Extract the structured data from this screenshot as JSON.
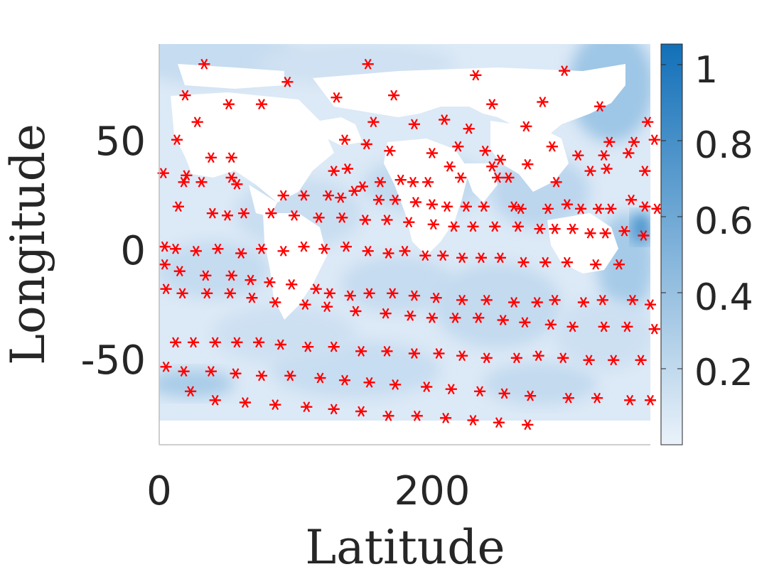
{
  "chart_data": {
    "type": "scatter",
    "xlabel": "Latitude",
    "ylabel": "Longitude",
    "xlim": [
      0,
      360
    ],
    "ylim": [
      -90,
      90
    ],
    "xticks": [
      "0",
      "200"
    ],
    "yticks": [
      "50",
      "0",
      "-50"
    ],
    "background": "heatmap",
    "colorbar": {
      "range": [
        0,
        1
      ],
      "ticks": [
        "1",
        "0.8",
        "0.6",
        "0.4",
        "0.2"
      ],
      "colormap": [
        "#eaf2fa",
        "#1270b8"
      ]
    },
    "marker": {
      "symbol": "asterisk",
      "color": "#ff0000"
    },
    "series": [
      {
        "points": [
          [
            33,
            81
          ],
          [
            153,
            81
          ],
          [
            232,
            76
          ],
          [
            297,
            78
          ],
          [
            94,
            73
          ],
          [
            19,
            67
          ],
          [
            130,
            66
          ],
          [
            172,
            67
          ],
          [
            244,
            63
          ],
          [
            281,
            64
          ],
          [
            323,
            62
          ],
          [
            51,
            63
          ],
          [
            75,
            63
          ],
          [
            28,
            55
          ],
          [
            157,
            55
          ],
          [
            187,
            54
          ],
          [
            209,
            56
          ],
          [
            227,
            52
          ],
          [
            269,
            53
          ],
          [
            358,
            55
          ],
          [
            13,
            47
          ],
          [
            136,
            47
          ],
          [
            152,
            45
          ],
          [
            219,
            44
          ],
          [
            288,
            44
          ],
          [
            330,
            46
          ],
          [
            348,
            46
          ],
          [
            363,
            47
          ],
          [
            38,
            39
          ],
          [
            53,
            39
          ],
          [
            169,
            42
          ],
          [
            200,
            41
          ],
          [
            239,
            42
          ],
          [
            307,
            40
          ],
          [
            326,
            40
          ],
          [
            344,
            41
          ],
          [
            3,
            32
          ],
          [
            20,
            31
          ],
          [
            53,
            30
          ],
          [
            128,
            33
          ],
          [
            138,
            34
          ],
          [
            213,
            35
          ],
          [
            244,
            35
          ],
          [
            250,
            38
          ],
          [
            270,
            36
          ],
          [
            316,
            33
          ],
          [
            328,
            34
          ],
          [
            356,
            33
          ],
          [
            370,
            33
          ],
          [
            18,
            28
          ],
          [
            31,
            28
          ],
          [
            162,
            28
          ],
          [
            177,
            29
          ],
          [
            186,
            28
          ],
          [
            197,
            28
          ],
          [
            221,
            30
          ],
          [
            248,
            30
          ],
          [
            256,
            30
          ],
          [
            291,
            28
          ],
          [
            149,
            26
          ],
          [
            143,
            24
          ],
          [
            57,
            27
          ],
          [
            91,
            22
          ],
          [
            106,
            22
          ],
          [
            124,
            22
          ],
          [
            133,
            21
          ],
          [
            161,
            20
          ],
          [
            173,
            20
          ],
          [
            188,
            19
          ],
          [
            200,
            18
          ],
          [
            211,
            17
          ],
          [
            225,
            17
          ],
          [
            238,
            17
          ],
          [
            260,
            17
          ],
          [
            265,
            16
          ],
          [
            285,
            16
          ],
          [
            299,
            18
          ],
          [
            309,
            16
          ],
          [
            322,
            16
          ],
          [
            331,
            16
          ],
          [
            346,
            20
          ],
          [
            356,
            17
          ],
          [
            365,
            16
          ],
          [
            14,
            17
          ],
          [
            39,
            14
          ],
          [
            50,
            13
          ],
          [
            62,
            14
          ],
          [
            82,
            14
          ],
          [
            99,
            13
          ],
          [
            117,
            12
          ],
          [
            134,
            12
          ],
          [
            151,
            11
          ],
          [
            167,
            11
          ],
          [
            183,
            10
          ],
          [
            201,
            9
          ],
          [
            216,
            8
          ],
          [
            230,
            8
          ],
          [
            246,
            8
          ],
          [
            263,
            8
          ],
          [
            279,
            7
          ],
          [
            290,
            7
          ],
          [
            303,
            7
          ],
          [
            316,
            5
          ],
          [
            327,
            5
          ],
          [
            341,
            6
          ],
          [
            355,
            4
          ],
          [
            369,
            4
          ],
          [
            4,
            -1
          ],
          [
            12,
            -2
          ],
          [
            27,
            -3
          ],
          [
            43,
            -2
          ],
          [
            60,
            -4
          ],
          [
            75,
            -2
          ],
          [
            91,
            -3
          ],
          [
            106,
            -1
          ],
          [
            121,
            -2
          ],
          [
            137,
            -1
          ],
          [
            153,
            -3
          ],
          [
            168,
            -4
          ],
          [
            180,
            -3
          ],
          [
            195,
            -5
          ],
          [
            208,
            -5
          ],
          [
            222,
            -6
          ],
          [
            236,
            -6
          ],
          [
            250,
            -6
          ],
          [
            267,
            -8
          ],
          [
            283,
            -8
          ],
          [
            299,
            -8
          ],
          [
            320,
            -9
          ],
          [
            337,
            -9
          ],
          [
            4,
            -9
          ],
          [
            15,
            -12
          ],
          [
            34,
            -14
          ],
          [
            53,
            -14
          ],
          [
            67,
            -16
          ],
          [
            81,
            -17
          ],
          [
            97,
            -18
          ],
          [
            115,
            -20
          ],
          [
            125,
            -22
          ],
          [
            140,
            -23
          ],
          [
            154,
            -22
          ],
          [
            171,
            -22
          ],
          [
            187,
            -23
          ],
          [
            203,
            -24
          ],
          [
            222,
            -25
          ],
          [
            240,
            -25
          ],
          [
            260,
            -26
          ],
          [
            277,
            -26
          ],
          [
            290,
            -25
          ],
          [
            311,
            -26
          ],
          [
            325,
            -25
          ],
          [
            347,
            -25
          ],
          [
            360,
            -27
          ],
          [
            5,
            -20
          ],
          [
            17,
            -22
          ],
          [
            35,
            -22
          ],
          [
            52,
            -22
          ],
          [
            68,
            -24
          ],
          [
            85,
            -26
          ],
          [
            107,
            -27
          ],
          [
            123,
            -28
          ],
          [
            144,
            -30
          ],
          [
            166,
            -31
          ],
          [
            184,
            -32
          ],
          [
            200,
            -33
          ],
          [
            217,
            -33
          ],
          [
            234,
            -33
          ],
          [
            252,
            -34
          ],
          [
            268,
            -35
          ],
          [
            287,
            -36
          ],
          [
            303,
            -37
          ],
          [
            326,
            -37
          ],
          [
            343,
            -37
          ],
          [
            363,
            -38
          ],
          [
            12,
            -44
          ],
          [
            25,
            -44
          ],
          [
            41,
            -44
          ],
          [
            57,
            -44
          ],
          [
            73,
            -44
          ],
          [
            89,
            -45
          ],
          [
            109,
            -46
          ],
          [
            128,
            -46
          ],
          [
            148,
            -48
          ],
          [
            167,
            -48
          ],
          [
            187,
            -49
          ],
          [
            205,
            -49
          ],
          [
            222,
            -50
          ],
          [
            240,
            -51
          ],
          [
            262,
            -51
          ],
          [
            278,
            -50
          ],
          [
            296,
            -51
          ],
          [
            315,
            -52
          ],
          [
            333,
            -52
          ],
          [
            353,
            -52
          ],
          [
            369,
            -52
          ],
          [
            18,
            -57
          ],
          [
            38,
            -57
          ],
          [
            56,
            -58
          ],
          [
            75,
            -59
          ],
          [
            96,
            -59
          ],
          [
            118,
            -60
          ],
          [
            136,
            -61
          ],
          [
            154,
            -62
          ],
          [
            173,
            -63
          ],
          [
            196,
            -64
          ],
          [
            214,
            -65
          ],
          [
            235,
            -66
          ],
          [
            253,
            -67
          ],
          [
            272,
            -68
          ],
          [
            300,
            -69
          ],
          [
            321,
            -69
          ],
          [
            345,
            -70
          ],
          [
            360,
            -70
          ],
          [
            5,
            -55
          ],
          [
            23,
            -66
          ],
          [
            41,
            -70
          ],
          [
            63,
            -71
          ],
          [
            85,
            -72
          ],
          [
            108,
            -73
          ],
          [
            128,
            -74
          ],
          [
            148,
            -75
          ],
          [
            168,
            -77
          ],
          [
            189,
            -77
          ],
          [
            210,
            -78
          ],
          [
            230,
            -79
          ],
          [
            249,
            -80
          ],
          [
            270,
            -81
          ],
          [
            292,
            -82
          ],
          [
            312,
            -82
          ],
          [
            335,
            -83
          ],
          [
            354,
            -84
          ],
          [
            370,
            -85
          ]
        ]
      }
    ]
  }
}
